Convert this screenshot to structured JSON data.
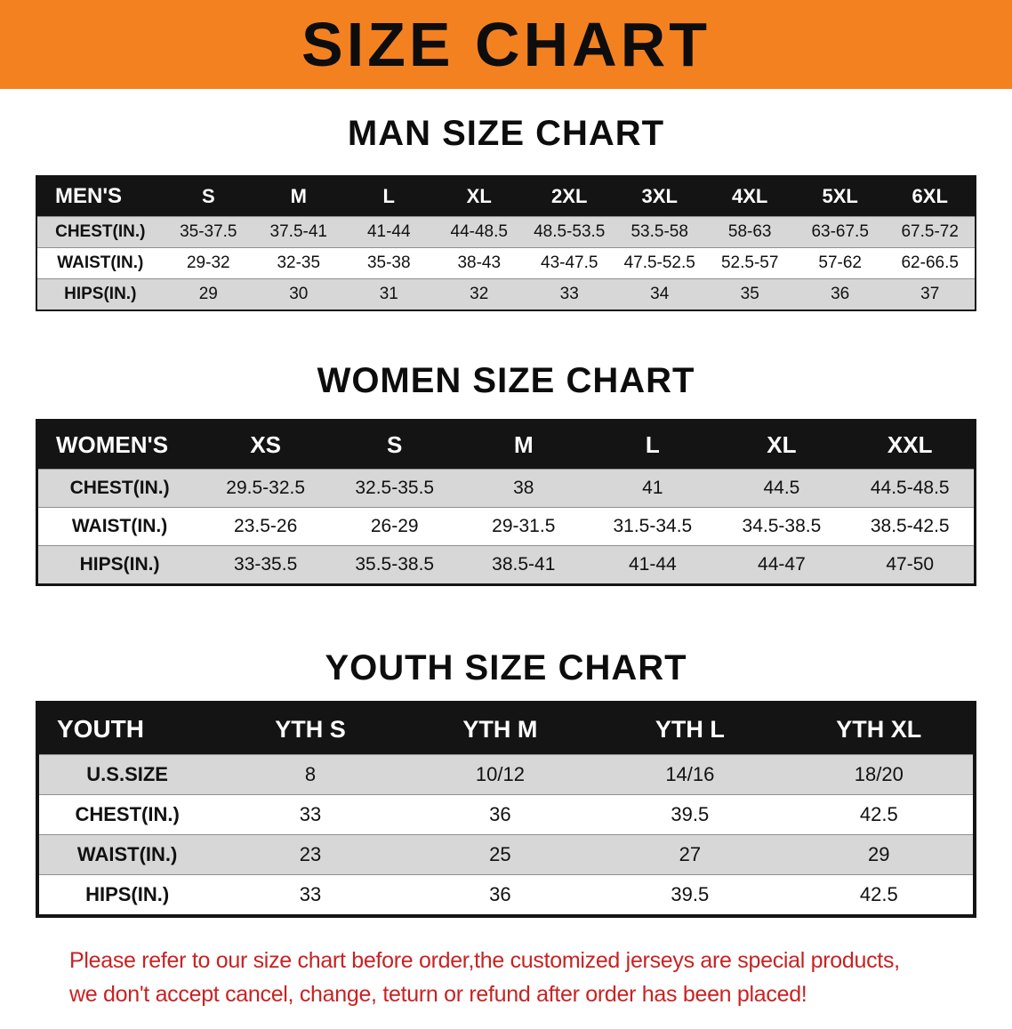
{
  "banner": {
    "title": "SIZE CHART",
    "bg_color": "#f48120",
    "text_color": "#0d0d0d"
  },
  "sections": [
    {
      "heading": "MAN SIZE CHART",
      "table": {
        "header": [
          "MEN'S",
          "S",
          "M",
          "L",
          "XL",
          "2XL",
          "3XL",
          "4XL",
          "5XL",
          "6XL"
        ],
        "rows": [
          [
            "CHEST(IN.)",
            "35-37.5",
            "37.5-41",
            "41-44",
            "44-48.5",
            "48.5-53.5",
            "53.5-58",
            "58-63",
            "63-67.5",
            "67.5-72"
          ],
          [
            "WAIST(IN.)",
            "29-32",
            "32-35",
            "35-38",
            "38-43",
            "43-47.5",
            "47.5-52.5",
            "52.5-57",
            "57-62",
            "62-66.5"
          ],
          [
            "HIPS(IN.)",
            "29",
            "30",
            "31",
            "32",
            "33",
            "34",
            "35",
            "36",
            "37"
          ]
        ]
      }
    },
    {
      "heading": "WOMEN SIZE CHART",
      "table": {
        "header": [
          "WOMEN'S",
          "XS",
          "S",
          "M",
          "L",
          "XL",
          "XXL"
        ],
        "rows": [
          [
            "CHEST(IN.)",
            "29.5-32.5",
            "32.5-35.5",
            "38",
            "41",
            "44.5",
            "44.5-48.5"
          ],
          [
            "WAIST(IN.)",
            "23.5-26",
            "26-29",
            "29-31.5",
            "31.5-34.5",
            "34.5-38.5",
            "38.5-42.5"
          ],
          [
            "HIPS(IN.)",
            "33-35.5",
            "35.5-38.5",
            "38.5-41",
            "41-44",
            "44-47",
            "47-50"
          ]
        ]
      }
    },
    {
      "heading": "YOUTH SIZE CHART",
      "table": {
        "header": [
          "YOUTH",
          "YTH S",
          "YTH M",
          "YTH L",
          "YTH XL"
        ],
        "rows": [
          [
            "U.S.SIZE",
            "8",
            "10/12",
            "14/16",
            "18/20"
          ],
          [
            "CHEST(IN.)",
            "33",
            "36",
            "39.5",
            "42.5"
          ],
          [
            "WAIST(IN.)",
            "23",
            "25",
            "27",
            "29"
          ],
          [
            "HIPS(IN.)",
            "33",
            "36",
            "39.5",
            "42.5"
          ]
        ]
      }
    }
  ],
  "disclaimer": {
    "line1": "Please refer to our size chart before order,the customized jerseys are special products,",
    "line2": "we don't accept cancel, change, teturn or refund after order has been placed!",
    "color": "#c92222"
  }
}
